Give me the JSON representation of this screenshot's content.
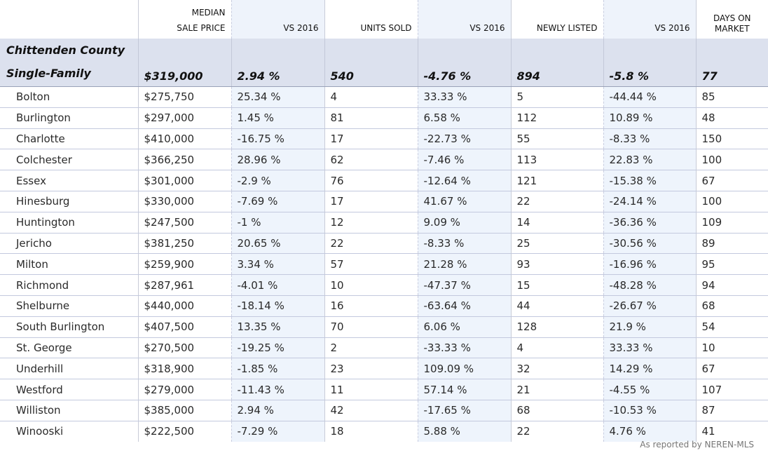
{
  "headers": {
    "median_line1": "MEDIAN",
    "median_line2": "SALE PRICE",
    "vs1": "VS 2016",
    "units": "UNITS SOLD",
    "vs2": "VS 2016",
    "listed": "NEWLY LISTED",
    "vs3": "VS 2016",
    "days_line1": "DAYS ON",
    "days_line2": "MARKET"
  },
  "summary": {
    "label_line1": "Chittenden County",
    "label_line2": "Single-Family",
    "median": "$319,000",
    "vs1": "2.94 %",
    "units": "540",
    "vs2": "-4.76 %",
    "listed": "894",
    "vs3": "-5.8 %",
    "days": "77"
  },
  "rows": [
    {
      "town": "Bolton",
      "median": "$275,750",
      "vs1": "25.34 %",
      "units": "4",
      "vs2": "33.33 %",
      "listed": "5",
      "vs3": "-44.44 %",
      "days": "85"
    },
    {
      "town": "Burlington",
      "median": "$297,000",
      "vs1": "1.45 %",
      "units": "81",
      "vs2": "6.58 %",
      "listed": "112",
      "vs3": "10.89 %",
      "days": "48"
    },
    {
      "town": "Charlotte",
      "median": "$410,000",
      "vs1": "-16.75 %",
      "units": "17",
      "vs2": "-22.73 %",
      "listed": "55",
      "vs3": "-8.33 %",
      "days": "150"
    },
    {
      "town": "Colchester",
      "median": "$366,250",
      "vs1": "28.96 %",
      "units": "62",
      "vs2": "-7.46 %",
      "listed": "113",
      "vs3": "22.83 %",
      "days": "100"
    },
    {
      "town": "Essex",
      "median": "$301,000",
      "vs1": "-2.9 %",
      "units": "76",
      "vs2": "-12.64 %",
      "listed": "121",
      "vs3": "-15.38 %",
      "days": "67"
    },
    {
      "town": "Hinesburg",
      "median": "$330,000",
      "vs1": "-7.69 %",
      "units": "17",
      "vs2": "41.67 %",
      "listed": "22",
      "vs3": "-24.14 %",
      "days": "100"
    },
    {
      "town": "Huntington",
      "median": "$247,500",
      "vs1": "-1 %",
      "units": "12",
      "vs2": "9.09 %",
      "listed": "14",
      "vs3": "-36.36 %",
      "days": "109"
    },
    {
      "town": "Jericho",
      "median": "$381,250",
      "vs1": "20.65 %",
      "units": "22",
      "vs2": "-8.33 %",
      "listed": "25",
      "vs3": "-30.56 %",
      "days": "89"
    },
    {
      "town": "Milton",
      "median": "$259,900",
      "vs1": "3.34 %",
      "units": "57",
      "vs2": "21.28 %",
      "listed": "93",
      "vs3": "-16.96 %",
      "days": "95"
    },
    {
      "town": "Richmond",
      "median": "$287,961",
      "vs1": "-4.01 %",
      "units": "10",
      "vs2": "-47.37 %",
      "listed": "15",
      "vs3": "-48.28 %",
      "days": "94"
    },
    {
      "town": "Shelburne",
      "median": "$440,000",
      "vs1": "-18.14 %",
      "units": "16",
      "vs2": "-63.64 %",
      "listed": "44",
      "vs3": "-26.67 %",
      "days": "68"
    },
    {
      "town": "South Burlington",
      "median": "$407,500",
      "vs1": "13.35 %",
      "units": "70",
      "vs2": "6.06 %",
      "listed": "128",
      "vs3": "21.9 %",
      "days": "54"
    },
    {
      "town": "St. George",
      "median": "$270,500",
      "vs1": "-19.25 %",
      "units": "2",
      "vs2": "-33.33 %",
      "listed": "4",
      "vs3": "33.33 %",
      "days": "10"
    },
    {
      "town": "Underhill",
      "median": "$318,900",
      "vs1": "-1.85 %",
      "units": "23",
      "vs2": "109.09 %",
      "listed": "32",
      "vs3": "14.29 %",
      "days": "67"
    },
    {
      "town": "Westford",
      "median": "$279,000",
      "vs1": "-11.43 %",
      "units": "11",
      "vs2": "57.14 %",
      "listed": "21",
      "vs3": "-4.55 %",
      "days": "107"
    },
    {
      "town": "Williston",
      "median": "$385,000",
      "vs1": "2.94 %",
      "units": "42",
      "vs2": "-17.65 %",
      "listed": "68",
      "vs3": "-10.53 %",
      "days": "87"
    },
    {
      "town": "Winooski",
      "median": "$222,500",
      "vs1": "-7.29 %",
      "units": "18",
      "vs2": "5.88 %",
      "listed": "22",
      "vs3": "4.76 %",
      "days": "41"
    }
  ],
  "credit": "As reported by NEREN-MLS",
  "colors": {
    "summary_bg": "#dce1ee",
    "shaded_col_bg": "#eef4fc",
    "gridline": "#c3c9de"
  }
}
